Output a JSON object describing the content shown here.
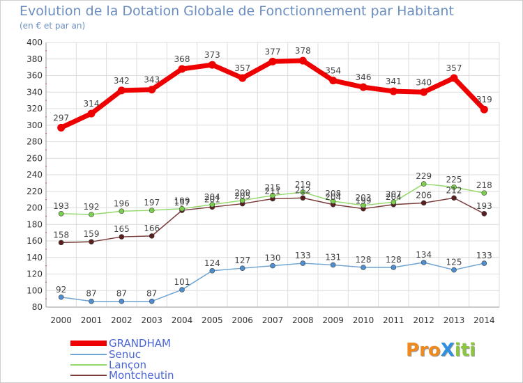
{
  "title": "Evolution de la Dotation Globale de Fonctionnement par Habitant",
  "subtitle": "(en € et par an)",
  "logo": {
    "text": "ProXiti",
    "letters": [
      {
        "char": "P",
        "color": "#f08a1c"
      },
      {
        "char": "r",
        "color": "#f08a1c"
      },
      {
        "char": "o",
        "color": "#f08a1c"
      },
      {
        "char": "X",
        "color": "#2f8fe0"
      },
      {
        "char": "i",
        "color": "#8cc63f"
      },
      {
        "char": "t",
        "color": "#8cc63f"
      },
      {
        "char": "i",
        "color": "#8cc63f"
      }
    ]
  },
  "colors": {
    "grid": "#dcdcdc",
    "axis": "#9a9a9a",
    "tick_text": "#333333",
    "label_text": "#444444",
    "legend_text": "#4a64d8",
    "title": "#6b8ec0"
  },
  "chart_data": {
    "type": "line",
    "title": "Evolution de la Dotation Globale de Fonctionnement par Habitant",
    "subtitle": "(en € et par an)",
    "xlabel": "",
    "ylabel": "",
    "x": [
      "2000",
      "2001",
      "2002",
      "2003",
      "2004",
      "2005",
      "2006",
      "2007",
      "2008",
      "2009",
      "2010",
      "2011",
      "2012",
      "2013",
      "2014"
    ],
    "yticks": [
      80,
      100,
      120,
      140,
      160,
      180,
      200,
      220,
      240,
      260,
      280,
      300,
      320,
      340,
      360,
      380,
      400
    ],
    "ylim": [
      80,
      400
    ],
    "grid": true,
    "legend_position": "bottom-left",
    "series": [
      {
        "name": "GRANDHAM",
        "values": [
          297,
          314,
          342,
          343,
          368,
          373,
          357,
          377,
          378,
          354,
          346,
          341,
          340,
          357,
          319
        ],
        "color": "#ee0000",
        "marker_color": "#ee0000",
        "style": "thick"
      },
      {
        "name": "Senuc",
        "values": [
          92,
          87,
          87,
          87,
          101,
          124,
          127,
          130,
          133,
          131,
          128,
          128,
          134,
          125,
          133
        ],
        "color": "#6fa3d2",
        "marker_color": "#4f8fd0",
        "style": "thin"
      },
      {
        "name": "Lançon",
        "values": [
          193,
          192,
          196,
          197,
          199,
          204,
          209,
          215,
          219,
          208,
          203,
          207,
          229,
          225,
          218
        ],
        "color": "#94d86b",
        "marker_color": "#7ccf4f",
        "style": "thin"
      },
      {
        "name": "Montcheutin",
        "values": [
          158,
          159,
          165,
          166,
          197,
          201,
          205,
          211,
          212,
          204,
          199,
          204,
          206,
          212,
          193
        ],
        "color": "#7a3a3a",
        "marker_color": "#5a1f1f",
        "style": "thin"
      }
    ]
  }
}
